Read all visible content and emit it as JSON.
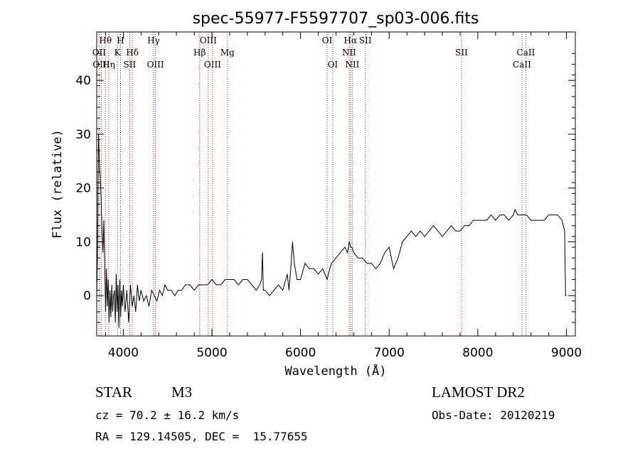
{
  "chart_data": {
    "type": "line",
    "title": "spec-55977-F5597707_sp03-006.fits",
    "xlabel": "Wavelength (Å)",
    "ylabel": "Flux (relative)",
    "xlim": [
      3700,
      9100
    ],
    "ylim": [
      -7.5,
      49
    ],
    "xticks": [
      4000,
      5000,
      6000,
      7000,
      8000,
      9000
    ],
    "yticks": [
      0,
      10,
      20,
      30,
      40
    ],
    "grid": false,
    "line_color": "#000000",
    "marker_color": "#b22222",
    "series": [
      {
        "x": [
          3700,
          3710,
          3720,
          3730,
          3740,
          3750,
          3760,
          3770,
          3780,
          3790,
          3800,
          3810,
          3820,
          3830,
          3840,
          3850,
          3860,
          3870,
          3880,
          3890,
          3900,
          3910,
          3920,
          3930,
          3940,
          3950,
          3960,
          3970,
          3980,
          3990,
          4000,
          4020,
          4040,
          4060,
          4080,
          4100,
          4120,
          4140,
          4160,
          4180,
          4200,
          4230,
          4260,
          4290,
          4320,
          4350,
          4380,
          4410,
          4440,
          4470,
          4500,
          4540,
          4580,
          4620,
          4660,
          4700,
          4750,
          4800,
          4850,
          4900,
          4950,
          5000,
          5050,
          5100,
          5150,
          5200,
          5250,
          5300,
          5350,
          5400,
          5450,
          5500,
          5540,
          5560,
          5570,
          5580,
          5600,
          5650,
          5700,
          5750,
          5800,
          5850,
          5870,
          5890,
          5910,
          5930,
          5960,
          6000,
          6050,
          6100,
          6150,
          6200,
          6250,
          6300,
          6330,
          6350,
          6400,
          6450,
          6500,
          6530,
          6550,
          6565,
          6580,
          6600,
          6650,
          6700,
          6750,
          6800,
          6850,
          6900,
          6950,
          7000,
          7050,
          7100,
          7150,
          7200,
          7250,
          7300,
          7350,
          7400,
          7450,
          7500,
          7550,
          7600,
          7650,
          7700,
          7750,
          7800,
          7850,
          7900,
          7950,
          8000,
          8050,
          8100,
          8150,
          8200,
          8250,
          8300,
          8350,
          8400,
          8420,
          8450,
          8500,
          8550,
          8600,
          8650,
          8700,
          8750,
          8800,
          8850,
          8900,
          8950,
          8980,
          8990,
          9000
        ],
        "y": [
          0,
          9,
          30,
          25,
          22,
          18,
          12,
          8,
          14,
          6,
          -3,
          5,
          -2,
          3,
          -5,
          1,
          -4,
          2,
          -3,
          0,
          1,
          -5,
          4,
          -3,
          2,
          -6,
          3,
          -4,
          1,
          -2,
          2,
          -3,
          1,
          -5,
          2,
          -2,
          0,
          -3,
          2,
          -1,
          1,
          -1,
          0,
          -2,
          1,
          0,
          -1,
          1,
          0,
          2,
          1,
          1,
          0,
          1,
          1,
          2,
          2,
          1,
          2,
          2,
          2,
          3,
          2,
          2,
          3,
          3,
          3,
          2,
          3,
          3,
          2,
          1,
          2,
          3,
          8,
          1,
          1,
          0,
          1,
          2,
          1,
          4,
          1,
          5,
          10,
          6,
          3,
          3,
          6,
          5,
          5,
          4,
          5,
          3,
          5,
          6,
          7,
          8,
          9,
          8,
          10,
          9,
          9,
          8,
          7,
          7,
          6,
          6,
          5,
          6,
          8,
          9,
          5,
          7,
          10,
          11,
          12,
          11,
          12,
          11,
          12,
          13,
          12,
          11,
          12,
          13,
          12,
          12,
          13,
          13,
          14,
          14,
          14,
          14,
          15,
          14,
          15,
          15,
          14,
          15,
          16,
          15,
          15,
          15,
          14,
          14,
          14,
          14,
          15,
          15,
          15,
          14,
          12,
          0,
          0
        ]
      }
    ],
    "spectral_lines": [
      {
        "name": "Hθ",
        "x": 3798,
        "row": 0
      },
      {
        "name": "H",
        "x": 3969,
        "row": 0
      },
      {
        "name": "Hγ",
        "x": 4341,
        "row": 0
      },
      {
        "name": "OIII",
        "x": 4959,
        "row": 0
      },
      {
        "name": "OI",
        "x": 6300,
        "row": 0
      },
      {
        "name": "Hα",
        "x": 6563,
        "row": 0
      },
      {
        "name": "SII",
        "x": 6731,
        "row": 0
      },
      {
        "name": "OII",
        "x": 3727,
        "row": 1
      },
      {
        "name": "K",
        "x": 3934,
        "row": 1
      },
      {
        "name": "Hδ",
        "x": 4102,
        "row": 1
      },
      {
        "name": "Hβ",
        "x": 4861,
        "row": 1
      },
      {
        "name": "Mg",
        "x": 5175,
        "row": 1
      },
      {
        "name": "NII",
        "x": 6548,
        "row": 1
      },
      {
        "name": "SII",
        "x": 7816,
        "row": 1
      },
      {
        "name": "CaII",
        "x": 8542,
        "row": 1
      },
      {
        "name": "OIII",
        "x": 3751,
        "row": 2
      },
      {
        "name": "Hη",
        "x": 3835,
        "row": 2
      },
      {
        "name": "SII",
        "x": 4072,
        "row": 2
      },
      {
        "name": "OIII",
        "x": 4363,
        "row": 2
      },
      {
        "name": "OIII",
        "x": 5007,
        "row": 2
      },
      {
        "name": "OI",
        "x": 6364,
        "row": 2
      },
      {
        "name": "NII",
        "x": 6584,
        "row": 2
      },
      {
        "name": "CaII",
        "x": 8498,
        "row": 2
      }
    ]
  },
  "footer": {
    "class_label": "STAR",
    "subclass": "M3",
    "survey": "LAMOST DR2",
    "cz": "cz = 70.2 ± 16.2 km/s",
    "obs_date": "Obs-Date: 20120219",
    "coords": "RA = 129.14505, DEC =  15.77655"
  }
}
